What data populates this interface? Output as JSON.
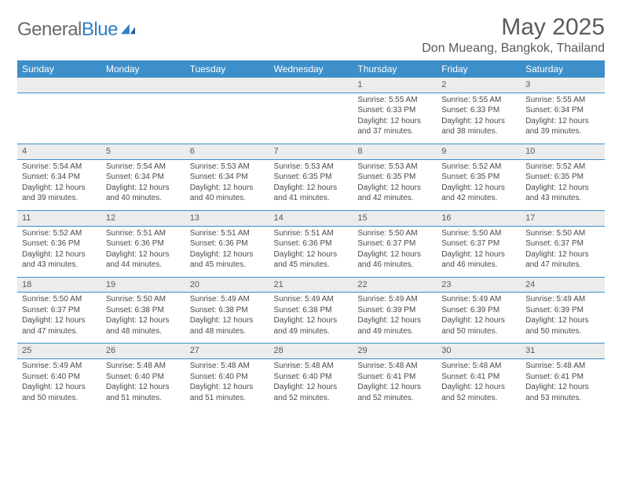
{
  "logo": {
    "text_gray": "General",
    "text_blue": "Blue"
  },
  "title": "May 2025",
  "location": "Don Mueang, Bangkok, Thailand",
  "colors": {
    "header_bg": "#3d8fc9",
    "header_text": "#ffffff",
    "daynum_bg": "#ececec",
    "rule": "#3d8fc9",
    "body_text": "#4a4a4a"
  },
  "weekdays": [
    "Sunday",
    "Monday",
    "Tuesday",
    "Wednesday",
    "Thursday",
    "Friday",
    "Saturday"
  ],
  "weeks": [
    {
      "nums": [
        "",
        "",
        "",
        "",
        "1",
        "2",
        "3"
      ],
      "cells": [
        {},
        {},
        {},
        {},
        {
          "sunrise": "Sunrise: 5:55 AM",
          "sunset": "Sunset: 6:33 PM",
          "day1": "Daylight: 12 hours",
          "day2": "and 37 minutes."
        },
        {
          "sunrise": "Sunrise: 5:55 AM",
          "sunset": "Sunset: 6:33 PM",
          "day1": "Daylight: 12 hours",
          "day2": "and 38 minutes."
        },
        {
          "sunrise": "Sunrise: 5:55 AM",
          "sunset": "Sunset: 6:34 PM",
          "day1": "Daylight: 12 hours",
          "day2": "and 39 minutes."
        }
      ]
    },
    {
      "nums": [
        "4",
        "5",
        "6",
        "7",
        "8",
        "9",
        "10"
      ],
      "cells": [
        {
          "sunrise": "Sunrise: 5:54 AM",
          "sunset": "Sunset: 6:34 PM",
          "day1": "Daylight: 12 hours",
          "day2": "and 39 minutes."
        },
        {
          "sunrise": "Sunrise: 5:54 AM",
          "sunset": "Sunset: 6:34 PM",
          "day1": "Daylight: 12 hours",
          "day2": "and 40 minutes."
        },
        {
          "sunrise": "Sunrise: 5:53 AM",
          "sunset": "Sunset: 6:34 PM",
          "day1": "Daylight: 12 hours",
          "day2": "and 40 minutes."
        },
        {
          "sunrise": "Sunrise: 5:53 AM",
          "sunset": "Sunset: 6:35 PM",
          "day1": "Daylight: 12 hours",
          "day2": "and 41 minutes."
        },
        {
          "sunrise": "Sunrise: 5:53 AM",
          "sunset": "Sunset: 6:35 PM",
          "day1": "Daylight: 12 hours",
          "day2": "and 42 minutes."
        },
        {
          "sunrise": "Sunrise: 5:52 AM",
          "sunset": "Sunset: 6:35 PM",
          "day1": "Daylight: 12 hours",
          "day2": "and 42 minutes."
        },
        {
          "sunrise": "Sunrise: 5:52 AM",
          "sunset": "Sunset: 6:35 PM",
          "day1": "Daylight: 12 hours",
          "day2": "and 43 minutes."
        }
      ]
    },
    {
      "nums": [
        "11",
        "12",
        "13",
        "14",
        "15",
        "16",
        "17"
      ],
      "cells": [
        {
          "sunrise": "Sunrise: 5:52 AM",
          "sunset": "Sunset: 6:36 PM",
          "day1": "Daylight: 12 hours",
          "day2": "and 43 minutes."
        },
        {
          "sunrise": "Sunrise: 5:51 AM",
          "sunset": "Sunset: 6:36 PM",
          "day1": "Daylight: 12 hours",
          "day2": "and 44 minutes."
        },
        {
          "sunrise": "Sunrise: 5:51 AM",
          "sunset": "Sunset: 6:36 PM",
          "day1": "Daylight: 12 hours",
          "day2": "and 45 minutes."
        },
        {
          "sunrise": "Sunrise: 5:51 AM",
          "sunset": "Sunset: 6:36 PM",
          "day1": "Daylight: 12 hours",
          "day2": "and 45 minutes."
        },
        {
          "sunrise": "Sunrise: 5:50 AM",
          "sunset": "Sunset: 6:37 PM",
          "day1": "Daylight: 12 hours",
          "day2": "and 46 minutes."
        },
        {
          "sunrise": "Sunrise: 5:50 AM",
          "sunset": "Sunset: 6:37 PM",
          "day1": "Daylight: 12 hours",
          "day2": "and 46 minutes."
        },
        {
          "sunrise": "Sunrise: 5:50 AM",
          "sunset": "Sunset: 6:37 PM",
          "day1": "Daylight: 12 hours",
          "day2": "and 47 minutes."
        }
      ]
    },
    {
      "nums": [
        "18",
        "19",
        "20",
        "21",
        "22",
        "23",
        "24"
      ],
      "cells": [
        {
          "sunrise": "Sunrise: 5:50 AM",
          "sunset": "Sunset: 6:37 PM",
          "day1": "Daylight: 12 hours",
          "day2": "and 47 minutes."
        },
        {
          "sunrise": "Sunrise: 5:50 AM",
          "sunset": "Sunset: 6:38 PM",
          "day1": "Daylight: 12 hours",
          "day2": "and 48 minutes."
        },
        {
          "sunrise": "Sunrise: 5:49 AM",
          "sunset": "Sunset: 6:38 PM",
          "day1": "Daylight: 12 hours",
          "day2": "and 48 minutes."
        },
        {
          "sunrise": "Sunrise: 5:49 AM",
          "sunset": "Sunset: 6:38 PM",
          "day1": "Daylight: 12 hours",
          "day2": "and 49 minutes."
        },
        {
          "sunrise": "Sunrise: 5:49 AM",
          "sunset": "Sunset: 6:39 PM",
          "day1": "Daylight: 12 hours",
          "day2": "and 49 minutes."
        },
        {
          "sunrise": "Sunrise: 5:49 AM",
          "sunset": "Sunset: 6:39 PM",
          "day1": "Daylight: 12 hours",
          "day2": "and 50 minutes."
        },
        {
          "sunrise": "Sunrise: 5:49 AM",
          "sunset": "Sunset: 6:39 PM",
          "day1": "Daylight: 12 hours",
          "day2": "and 50 minutes."
        }
      ]
    },
    {
      "nums": [
        "25",
        "26",
        "27",
        "28",
        "29",
        "30",
        "31"
      ],
      "cells": [
        {
          "sunrise": "Sunrise: 5:49 AM",
          "sunset": "Sunset: 6:40 PM",
          "day1": "Daylight: 12 hours",
          "day2": "and 50 minutes."
        },
        {
          "sunrise": "Sunrise: 5:48 AM",
          "sunset": "Sunset: 6:40 PM",
          "day1": "Daylight: 12 hours",
          "day2": "and 51 minutes."
        },
        {
          "sunrise": "Sunrise: 5:48 AM",
          "sunset": "Sunset: 6:40 PM",
          "day1": "Daylight: 12 hours",
          "day2": "and 51 minutes."
        },
        {
          "sunrise": "Sunrise: 5:48 AM",
          "sunset": "Sunset: 6:40 PM",
          "day1": "Daylight: 12 hours",
          "day2": "and 52 minutes."
        },
        {
          "sunrise": "Sunrise: 5:48 AM",
          "sunset": "Sunset: 6:41 PM",
          "day1": "Daylight: 12 hours",
          "day2": "and 52 minutes."
        },
        {
          "sunrise": "Sunrise: 5:48 AM",
          "sunset": "Sunset: 6:41 PM",
          "day1": "Daylight: 12 hours",
          "day2": "and 52 minutes."
        },
        {
          "sunrise": "Sunrise: 5:48 AM",
          "sunset": "Sunset: 6:41 PM",
          "day1": "Daylight: 12 hours",
          "day2": "and 53 minutes."
        }
      ]
    }
  ]
}
